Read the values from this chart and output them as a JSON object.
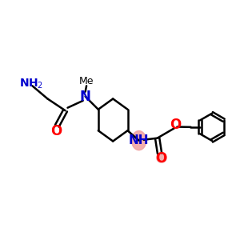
{
  "bg_color": "#ffffff",
  "bond_color": "#000000",
  "n_color": "#0000cd",
  "o_color": "#ff0000",
  "nh_highlight_color": "#f0a0a0",
  "line_width": 1.8,
  "figsize": [
    3.0,
    3.0
  ],
  "dpi": 100,
  "xlim": [
    0,
    10
  ],
  "ylim": [
    0,
    10
  ]
}
